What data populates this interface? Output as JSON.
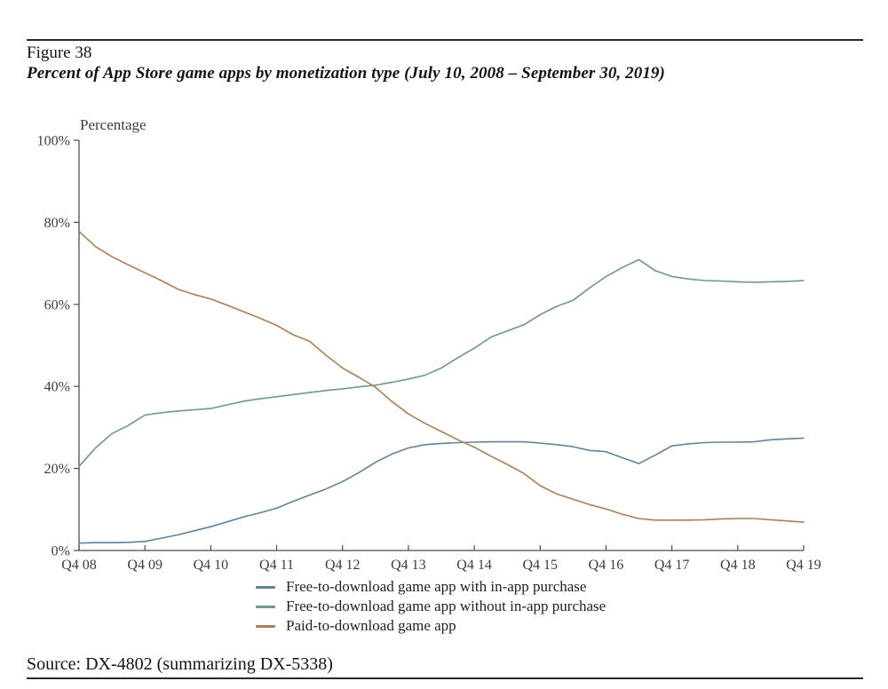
{
  "header": {
    "figure_label": "Figure 38",
    "title": "Percent of App Store game apps by monetization type (July 10, 2008 – September 30, 2019)"
  },
  "footer": {
    "source": "Source: DX-4802 (summarizing DX-5338)"
  },
  "chart_data": {
    "type": "line",
    "title": "Percent of App Store game apps by monetization type (July 10, 2008 – September 30, 2019)",
    "xlabel": "",
    "ylabel": "Percentage",
    "y_max": 100,
    "ylim": [
      0,
      100
    ],
    "grid": false,
    "legend_position": "bottom",
    "axis_color": "#4d4d4d",
    "y_ticks": [
      {
        "v": 100,
        "label": "100%"
      },
      {
        "v": 80,
        "label": "80%"
      },
      {
        "v": 60,
        "label": "60%"
      },
      {
        "v": 40,
        "label": "40%"
      },
      {
        "v": 20,
        "label": "20%"
      },
      {
        "v": 0,
        "label": "0%"
      }
    ],
    "x_ticks": [
      {
        "i": 0,
        "label": "Q4 08"
      },
      {
        "i": 4,
        "label": "Q4 09"
      },
      {
        "i": 8,
        "label": "Q4 10"
      },
      {
        "i": 12,
        "label": "Q4 11"
      },
      {
        "i": 16,
        "label": "Q4 12"
      },
      {
        "i": 20,
        "label": "Q4 13"
      },
      {
        "i": 24,
        "label": "Q4 14"
      },
      {
        "i": 28,
        "label": "Q4 15"
      },
      {
        "i": 32,
        "label": "Q4 16"
      },
      {
        "i": 36,
        "label": "Q4 17"
      },
      {
        "i": 40,
        "label": "Q4 18"
      },
      {
        "i": 44,
        "label": "Q4 19"
      }
    ],
    "x_unit": "quarter",
    "series": [
      {
        "key": "free_with_iap",
        "name": "Free-to-download game app with in-app purchase",
        "color": "#5c84a4",
        "values": [
          1.8,
          1.9,
          1.9,
          2.0,
          2.2,
          3.0,
          3.8,
          4.8,
          5.8,
          7.0,
          8.2,
          9.2,
          10.3,
          12.0,
          13.5,
          15.0,
          16.8,
          19.0,
          21.5,
          23.5,
          25.0,
          25.8,
          26.1,
          26.3,
          26.4,
          26.5,
          26.5,
          26.5,
          26.2,
          25.8,
          25.3,
          24.4,
          24.1,
          22.6,
          21.2,
          23.3,
          25.5,
          26.0,
          26.3,
          26.4,
          26.4,
          26.5,
          27.0,
          27.2,
          27.4
        ]
      },
      {
        "key": "free_without_iap",
        "name": "Free-to-download game app without in-app purchase",
        "color": "#699b8c",
        "values": [
          20.5,
          25.0,
          28.5,
          30.5,
          33.0,
          33.6,
          34.0,
          34.3,
          34.6,
          35.5,
          36.4,
          37.0,
          37.5,
          38.0,
          38.5,
          39.0,
          39.4,
          39.9,
          40.3,
          41.0,
          41.8,
          42.7,
          44.5,
          47.0,
          49.3,
          52.0,
          53.5,
          55.0,
          57.5,
          59.5,
          61.0,
          64.0,
          66.8,
          69.0,
          70.9,
          68.2,
          66.8,
          66.2,
          65.8,
          65.7,
          65.5,
          65.4,
          65.5,
          65.6,
          65.8
        ]
      },
      {
        "key": "paid",
        "name": "Paid-to-download game app",
        "color": "#bc7a49",
        "values": [
          77.8,
          74.1,
          71.6,
          69.6,
          67.7,
          65.8,
          63.7,
          62.4,
          61.3,
          59.8,
          58.2,
          56.6,
          54.9,
          52.6,
          51.0,
          47.6,
          44.5,
          42.2,
          39.8,
          36.3,
          33.3,
          31.0,
          29.0,
          27.0,
          25.2,
          23.0,
          21.0,
          18.8,
          15.8,
          13.8,
          12.5,
          11.2,
          10.1,
          8.8,
          7.8,
          7.4,
          7.4,
          7.4,
          7.5,
          7.7,
          7.8,
          7.8,
          7.5,
          7.2,
          6.9
        ]
      }
    ]
  }
}
